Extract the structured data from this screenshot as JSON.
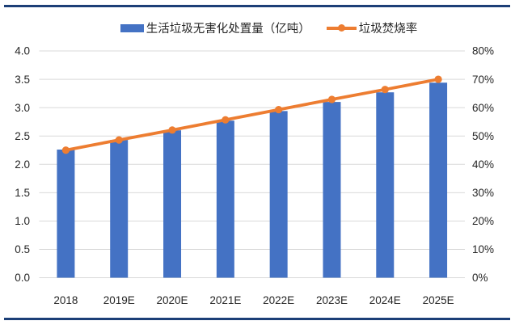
{
  "colors": {
    "bar": "#4472C4",
    "line": "#ED7D31",
    "grid": "#D9D9D9",
    "axis_text": "#262626",
    "border_rule": "#1C3F77",
    "background": "#FFFFFF"
  },
  "legend": {
    "items": [
      {
        "label": "生活垃圾无害化处置量（亿吨）",
        "swatch": "bar-swatch",
        "color": "#4472C4"
      },
      {
        "label": "垃圾焚烧率",
        "swatch": "line-dot-swatch",
        "color": "#ED7D31"
      }
    ]
  },
  "chart_data": {
    "type": "bar",
    "subtype": "bar+line combo, dual axis",
    "categories": [
      "2018",
      "2019E",
      "2020E",
      "2021E",
      "2022E",
      "2023E",
      "2024E",
      "2025E"
    ],
    "series": [
      {
        "name": "生活垃圾无害化处置量（亿吨）",
        "type": "bar",
        "axis": "left",
        "color": "#4472C4",
        "values": [
          2.26,
          2.43,
          2.6,
          2.77,
          2.94,
          3.1,
          3.27,
          3.44
        ]
      },
      {
        "name": "垃圾焚烧率",
        "type": "line",
        "axis": "right",
        "color": "#ED7D31",
        "values": [
          45.0,
          48.6,
          52.1,
          55.7,
          59.3,
          62.9,
          66.4,
          70.0
        ],
        "unit": "%"
      }
    ],
    "title": "",
    "xlabel": "",
    "ylabel_left": "",
    "ylabel_right": "",
    "y_left": {
      "min": 0,
      "max": 4,
      "tick_labels": [
        "0.0",
        "0.5",
        "1.0",
        "1.5",
        "2.0",
        "2.5",
        "3.0",
        "3.5",
        "4.0"
      ]
    },
    "y_right": {
      "min": 0,
      "max": 80,
      "tick_labels": [
        "0%",
        "10%",
        "20%",
        "30%",
        "40%",
        "50%",
        "60%",
        "70%",
        "80%"
      ]
    },
    "grid": true,
    "legend_position": "top"
  }
}
